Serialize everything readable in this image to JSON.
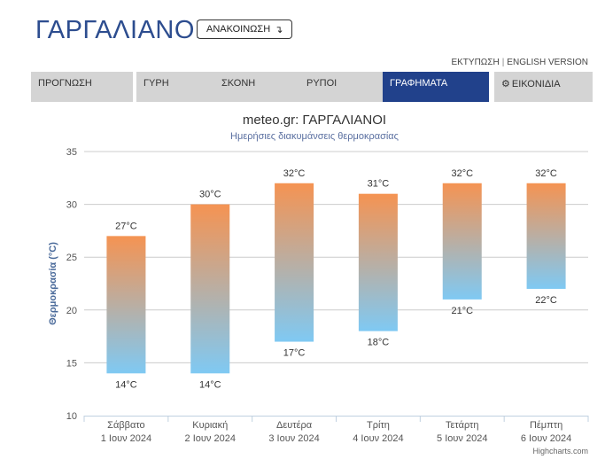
{
  "header": {
    "city": "ΓΑΡΓΑΛΙΑΝΟΙ",
    "notice_label": "ΑΝΑΚΟΙΝΩΣΗ",
    "notice_icon": "arrow-turn-icon"
  },
  "top_links": {
    "print": "ΕΚΤΥΠΩΣΗ",
    "separator": "|",
    "english": "ENGLISH VERSION"
  },
  "tabs": [
    {
      "label": "ΠΡΟΓΝΩΣΗ",
      "active": false
    },
    {
      "label": "ΓΥΡΗ",
      "active": false
    },
    {
      "label": "ΣΚΟΝΗ",
      "active": false
    },
    {
      "label": "ΡΥΠΟΙ",
      "active": false
    },
    {
      "label": "ΓΡΑΦΗΜΑΤΑ",
      "active": true
    },
    {
      "label": "ΕΙΚΟΝΙΔΙΑ",
      "active": false,
      "icon": "gear-icon"
    }
  ],
  "colors": {
    "title_blue": "#2d4d8f",
    "tab_active": "#21418b",
    "tab_inactive": "#d4d4d4",
    "bar_top": "#f59352",
    "bar_bottom": "#7fc9f3"
  },
  "chart_data": {
    "type": "bar",
    "title": "meteo.gr: ΓΑΡΓΑΛΙΑΝΟΙ",
    "subtitle": "Ημερήσιες διακυμάνσεις θερμοκρασίας",
    "ylabel": "Θερμοκρασία (°C)",
    "ylim": [
      10,
      35
    ],
    "yticks": [
      10,
      15,
      20,
      25,
      30,
      35
    ],
    "grid": true,
    "categories": [
      {
        "day": "Σάββατο",
        "date": "1 Ιουν 2024"
      },
      {
        "day": "Κυριακή",
        "date": "2 Ιουν 2024"
      },
      {
        "day": "Δευτέρα",
        "date": "3 Ιουν 2024"
      },
      {
        "day": "Τρίτη",
        "date": "4 Ιουν 2024"
      },
      {
        "day": "Τετάρτη",
        "date": "5 Ιουν 2024"
      },
      {
        "day": "Πέμπτη",
        "date": "6 Ιουν 2024"
      }
    ],
    "low": [
      14,
      14,
      17,
      18,
      21,
      22
    ],
    "high": [
      27,
      30,
      32,
      31,
      32,
      32
    ],
    "unit": "°C",
    "credits": "Highcharts.com"
  }
}
